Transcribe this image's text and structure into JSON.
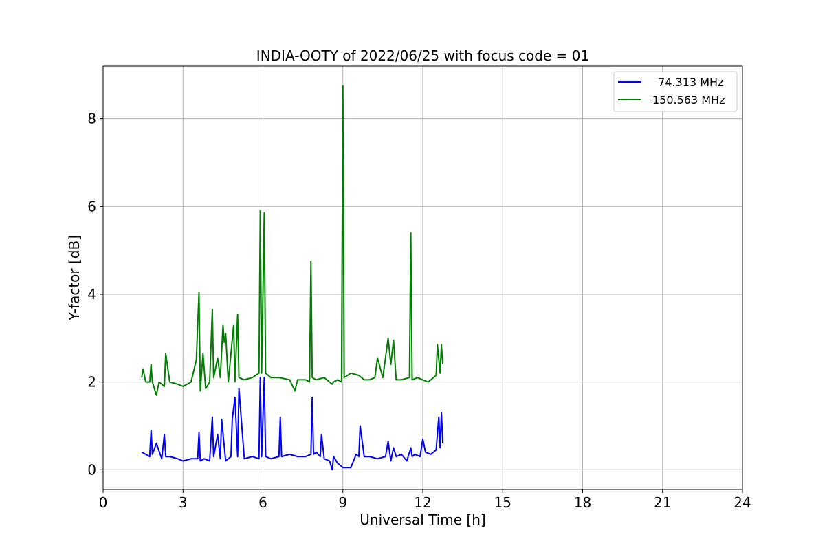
{
  "chart_data": {
    "type": "line",
    "title": "INDIA-OOTY of 2022/06/25 with focus code = 01",
    "xlabel": "Universal Time [h]",
    "ylabel": "Y-factor [dB]",
    "xlim": [
      0,
      24
    ],
    "ylim": [
      -0.45,
      9.2
    ],
    "xticks": [
      "0",
      "3",
      "6",
      "9",
      "12",
      "15",
      "18",
      "21",
      "24"
    ],
    "yticks": [
      "0",
      "2",
      "4",
      "6",
      "8"
    ],
    "grid": true,
    "legend_position": "top-right",
    "series": [
      {
        "name": "  74.313 MHz",
        "color": "#0000ff",
        "x": [
          1.45,
          1.6,
          1.75,
          1.8,
          1.85,
          2.0,
          2.2,
          2.3,
          2.35,
          2.5,
          2.8,
          3.0,
          3.3,
          3.55,
          3.6,
          3.65,
          3.8,
          4.0,
          4.1,
          4.15,
          4.3,
          4.4,
          4.45,
          4.6,
          4.8,
          4.85,
          4.95,
          5.05,
          5.1,
          5.3,
          5.6,
          5.85,
          5.9,
          5.95,
          6.05,
          6.1,
          6.3,
          6.6,
          6.65,
          6.7,
          7.0,
          7.3,
          7.6,
          7.8,
          7.85,
          7.9,
          8.0,
          8.15,
          8.2,
          8.3,
          8.5,
          8.6,
          8.65,
          8.8,
          9.0,
          9.3,
          9.5,
          9.6,
          9.65,
          9.8,
          10.0,
          10.3,
          10.6,
          10.7,
          10.8,
          10.9,
          11.0,
          11.2,
          11.4,
          11.55,
          11.6,
          11.7,
          11.9,
          12.0,
          12.1,
          12.3,
          12.5,
          12.6,
          12.65,
          12.7,
          12.75
        ],
        "y": [
          0.4,
          0.35,
          0.3,
          0.9,
          0.35,
          0.6,
          0.25,
          0.8,
          0.3,
          0.3,
          0.25,
          0.2,
          0.25,
          0.25,
          0.85,
          0.2,
          0.25,
          0.2,
          1.2,
          0.3,
          0.8,
          0.25,
          1.15,
          0.2,
          0.3,
          1.15,
          1.65,
          0.3,
          1.85,
          0.25,
          0.3,
          0.25,
          2.1,
          0.3,
          2.1,
          0.3,
          0.25,
          0.3,
          1.2,
          0.3,
          0.35,
          0.3,
          0.3,
          0.35,
          1.65,
          0.35,
          0.4,
          0.3,
          0.8,
          0.25,
          0.2,
          0.0,
          0.3,
          0.15,
          0.05,
          0.05,
          0.35,
          0.3,
          1.0,
          0.3,
          0.3,
          0.25,
          0.3,
          0.65,
          0.2,
          0.5,
          0.3,
          0.35,
          0.2,
          0.5,
          0.3,
          0.35,
          0.3,
          0.7,
          0.4,
          0.35,
          0.45,
          1.2,
          0.5,
          1.3,
          0.6
        ]
      },
      {
        "name": "150.563 MHz",
        "color": "#008000",
        "x": [
          1.45,
          1.5,
          1.6,
          1.75,
          1.8,
          1.85,
          2.0,
          2.1,
          2.3,
          2.35,
          2.5,
          2.8,
          3.0,
          3.3,
          3.5,
          3.6,
          3.65,
          3.75,
          3.85,
          4.0,
          4.1,
          4.15,
          4.3,
          4.4,
          4.5,
          4.55,
          4.6,
          4.7,
          4.9,
          4.95,
          5.05,
          5.1,
          5.3,
          5.6,
          5.85,
          5.9,
          5.95,
          6.05,
          6.1,
          6.3,
          6.6,
          7.0,
          7.2,
          7.3,
          7.6,
          7.75,
          7.8,
          7.85,
          8.0,
          8.3,
          8.5,
          8.6,
          8.65,
          8.8,
          8.95,
          9.0,
          9.05,
          9.3,
          9.6,
          9.8,
          10.0,
          10.2,
          10.3,
          10.5,
          10.7,
          10.8,
          10.9,
          11.0,
          11.2,
          11.5,
          11.55,
          11.6,
          11.8,
          12.0,
          12.2,
          12.5,
          12.55,
          12.65,
          12.7,
          12.75
        ],
        "y": [
          2.1,
          2.3,
          2.0,
          2.0,
          2.4,
          2.0,
          1.7,
          2.0,
          1.9,
          2.65,
          2.0,
          1.95,
          1.9,
          2.0,
          2.5,
          4.05,
          1.8,
          2.65,
          1.85,
          2.0,
          3.65,
          2.1,
          2.55,
          2.1,
          3.3,
          2.9,
          3.1,
          2.0,
          3.3,
          2.0,
          3.55,
          2.1,
          2.05,
          2.1,
          2.2,
          5.9,
          2.2,
          5.85,
          2.2,
          2.1,
          2.1,
          2.05,
          1.8,
          2.05,
          2.05,
          2.0,
          4.75,
          2.1,
          2.05,
          2.1,
          2.0,
          1.95,
          2.0,
          2.05,
          2.0,
          8.75,
          2.1,
          2.2,
          2.15,
          2.05,
          2.05,
          2.1,
          2.55,
          2.1,
          3.0,
          2.4,
          2.95,
          2.05,
          2.05,
          2.1,
          5.4,
          2.05,
          2.1,
          2.05,
          2.0,
          2.15,
          2.85,
          2.2,
          2.85,
          2.4
        ]
      }
    ]
  }
}
